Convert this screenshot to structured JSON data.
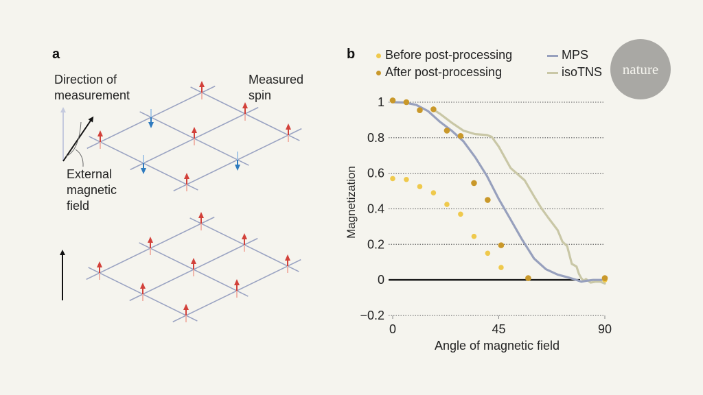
{
  "panel_a": {
    "letter": "a",
    "label_direction": [
      "Direction of",
      "measurement"
    ],
    "label_measured_spin": [
      "Measured",
      "spin"
    ],
    "label_external_field": [
      "External",
      "magnetic",
      "field"
    ],
    "top_lattice_spins": [
      "up",
      "down",
      "up",
      "down",
      "up",
      "up",
      "up",
      "down",
      "up"
    ],
    "bottom_lattice_spins": [
      "up",
      "up",
      "up",
      "up",
      "up",
      "up",
      "up",
      "up",
      "up"
    ],
    "colors": {
      "spin_up": "#d2413a",
      "spin_down": "#2f7bbf",
      "lattice": "#9aa3c2",
      "measurement_arrow": "#c5cade",
      "field_arrow": "#111111"
    }
  },
  "badge": {
    "text": "nature"
  },
  "chart_data": {
    "type": "scatter",
    "panel_letter": "b",
    "title": "",
    "xlabel": "Angle of magnetic field",
    "ylabel": "Magnetization",
    "xlim": [
      0,
      90
    ],
    "ylim": [
      -0.2,
      1
    ],
    "xticks": [
      0,
      45,
      90
    ],
    "yticks": [
      1,
      0.8,
      0.6,
      0.4,
      0.2,
      0,
      -0.2
    ],
    "ytick_labels": [
      "1",
      "0.8",
      "0.6",
      "0.4",
      "0.2",
      "0",
      "−0.2"
    ],
    "grid": "horizontal dotted",
    "legend": {
      "placement": "top",
      "entries": [
        {
          "label": "Before post-processing",
          "kind": "dot",
          "color": "#efc94c"
        },
        {
          "label": "After post-processing",
          "kind": "dot",
          "color": "#c9982a"
        },
        {
          "label": "MPS",
          "kind": "line",
          "color": "#97a0bd"
        },
        {
          "label": "isoTNS",
          "kind": "line",
          "color": "#c9c7a6"
        }
      ]
    },
    "series": [
      {
        "name": "Before post-processing",
        "kind": "scatter",
        "color": "#efc94c",
        "x": [
          0,
          5.8,
          11.5,
          17.3,
          23,
          28.8,
          34.5,
          40.3,
          46,
          90
        ],
        "y": [
          0.57,
          0.565,
          0.525,
          0.49,
          0.425,
          0.37,
          0.245,
          0.15,
          0.07,
          0.0
        ]
      },
      {
        "name": "After post-processing",
        "kind": "scatter",
        "color": "#c9982a",
        "x": [
          0,
          5.8,
          11.5,
          17.3,
          23,
          28.8,
          34.5,
          40.3,
          46,
          57.5,
          90
        ],
        "y": [
          1.01,
          1.0,
          0.955,
          0.96,
          0.84,
          0.81,
          0.545,
          0.45,
          0.195,
          0.01,
          0.01
        ]
      },
      {
        "name": "MPS",
        "kind": "line",
        "color": "#97a0bd",
        "x": [
          0,
          5,
          10,
          15,
          20,
          25,
          30,
          35,
          40,
          45,
          50,
          55,
          60,
          65,
          70,
          75,
          78,
          80,
          82,
          85,
          90
        ],
        "y": [
          1.0,
          0.998,
          0.985,
          0.95,
          0.89,
          0.84,
          0.78,
          0.69,
          0.585,
          0.455,
          0.34,
          0.225,
          0.12,
          0.06,
          0.03,
          0.012,
          0.0,
          -0.01,
          -0.005,
          0.0,
          0.0
        ]
      },
      {
        "name": "isoTNS",
        "kind": "line",
        "color": "#c9c7a6",
        "x": [
          17,
          20,
          25,
          30,
          35,
          40,
          42,
          45,
          50,
          53,
          56,
          60,
          63,
          66,
          70,
          72,
          74,
          76,
          78,
          79,
          80,
          81,
          82,
          84,
          86,
          88,
          90
        ],
        "y": [
          0.96,
          0.935,
          0.885,
          0.84,
          0.82,
          0.815,
          0.805,
          0.75,
          0.63,
          0.595,
          0.56,
          0.47,
          0.405,
          0.35,
          0.28,
          0.215,
          0.19,
          0.09,
          0.075,
          0.035,
          0.01,
          -0.005,
          0.005,
          -0.015,
          -0.01,
          -0.01,
          -0.02
        ]
      }
    ]
  }
}
